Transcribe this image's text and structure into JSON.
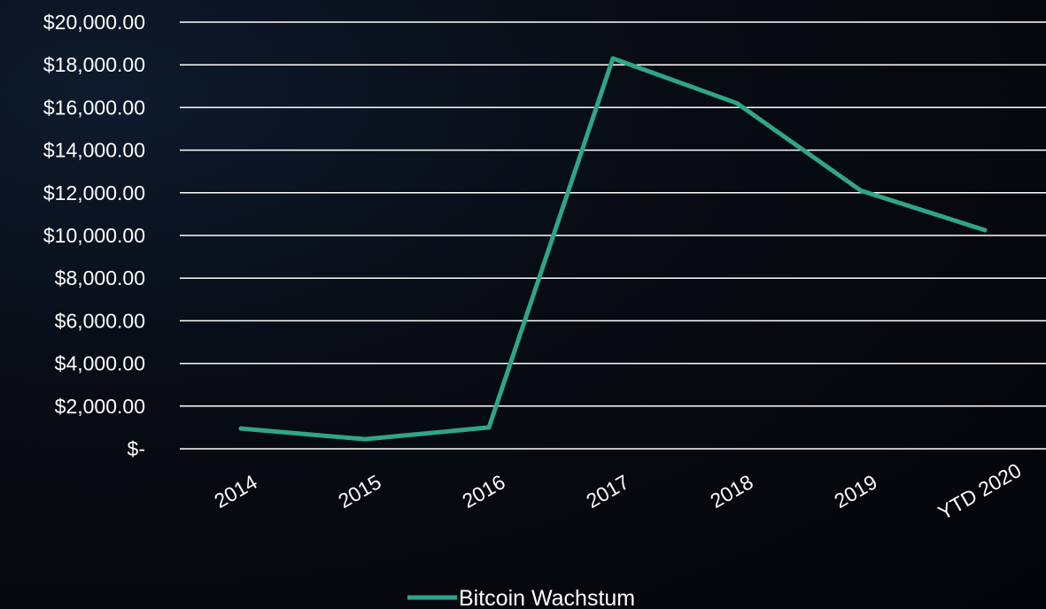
{
  "chart_data": {
    "type": "line",
    "categories": [
      "2014",
      "2015",
      "2016",
      "2017",
      "2018",
      "2019",
      "YTD 2020"
    ],
    "series": [
      {
        "name": "Bitcoin Wachstum",
        "values": [
          950,
          450,
          1000,
          18300,
          16200,
          12100,
          10250
        ],
        "color": "#2fa58a"
      }
    ],
    "y_tick_values": [
      0,
      2000,
      4000,
      6000,
      8000,
      10000,
      12000,
      14000,
      16000,
      18000,
      20000
    ],
    "y_tick_labels": [
      "$-",
      "$2,000.00",
      "$4,000.00",
      "$6,000.00",
      "$8,000.00",
      "$10,000.00",
      "$12,000.00",
      "$14,000.00",
      "$16,000.00",
      "$18,000.00",
      "$20,000.00"
    ],
    "ylim": [
      0,
      20000
    ],
    "title": "",
    "xlabel": "",
    "ylabel": "",
    "grid": "horizontal",
    "legend_position": "bottom-center",
    "colors": {
      "background": "#05070c",
      "grid": "#ffffff",
      "text": "#ffffff"
    }
  }
}
